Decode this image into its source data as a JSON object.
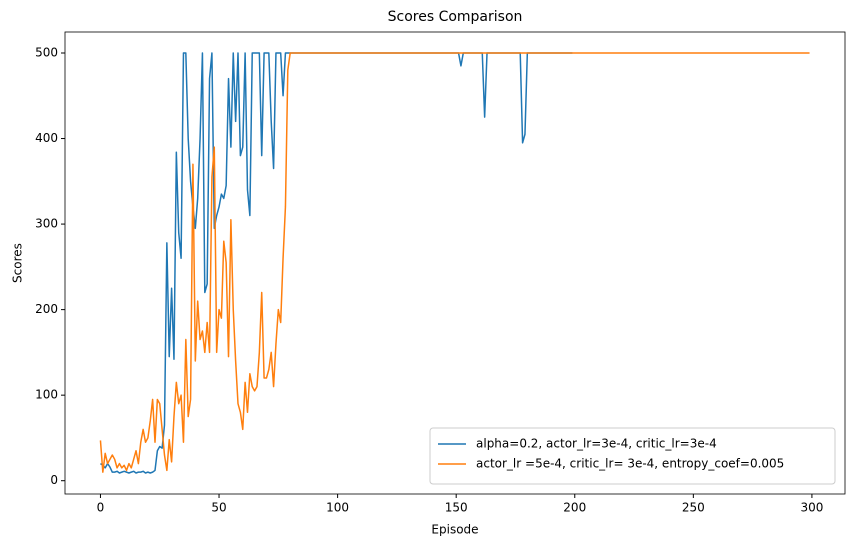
{
  "chart_data": {
    "type": "line",
    "title": "Scores Comparison",
    "xlabel": "Episode",
    "ylabel": "Scores",
    "xlim": [
      -14.95,
      313.95
    ],
    "xticks": [
      0,
      50,
      100,
      150,
      200,
      250,
      300
    ],
    "ylim": [
      -15.55,
      524.55
    ],
    "yticks": [
      0,
      100,
      200,
      300,
      400,
      500
    ],
    "grid": false,
    "legend": "lower right",
    "series": [
      {
        "name": "alpha=0.2, actor_lr=3e-4, critic_lr=3e-4",
        "color": "#1f77b4",
        "values": [
          20,
          18,
          15,
          20,
          16,
          10,
          10,
          11,
          9,
          10,
          11,
          10,
          9,
          10,
          11,
          9,
          10,
          10,
          11,
          9,
          10,
          9,
          10,
          12,
          35,
          40,
          38,
          65,
          278,
          145,
          225,
          142,
          384,
          290,
          260,
          500,
          500,
          400,
          350,
          320,
          295,
          330,
          400,
          500,
          220,
          230,
          470,
          500,
          295,
          310,
          320,
          335,
          330,
          345,
          470,
          390,
          500,
          420,
          500,
          380,
          390,
          500,
          340,
          310,
          500,
          500,
          500,
          500,
          380,
          500,
          500,
          500,
          420,
          365,
          500,
          500,
          500,
          450,
          500,
          500,
          500,
          500,
          500,
          500,
          500,
          500,
          500,
          500,
          500,
          500,
          500,
          500,
          500,
          500,
          500,
          500,
          500,
          500,
          500,
          500,
          500,
          500,
          500,
          500,
          500,
          500,
          500,
          500,
          500,
          500,
          500,
          500,
          500,
          500,
          500,
          500,
          500,
          500,
          500,
          500,
          500,
          500,
          500,
          500,
          500,
          500,
          500,
          500,
          500,
          500,
          500,
          500,
          500,
          500,
          500,
          500,
          500,
          500,
          500,
          500,
          500,
          500,
          500,
          500,
          500,
          500,
          500,
          500,
          500,
          500,
          500,
          500,
          485,
          500,
          500,
          500,
          500,
          500,
          500,
          500,
          500,
          500,
          425,
          500,
          500,
          500,
          500,
          500,
          500,
          500,
          500,
          500,
          500,
          500,
          500,
          500,
          500,
          500,
          395,
          405,
          500,
          500,
          500,
          500,
          500,
          500,
          500,
          500,
          500,
          500,
          500,
          500,
          500,
          500,
          500,
          500,
          500,
          500,
          500,
          500
        ]
      },
      {
        "name": "actor_lr =5e-4, critic_lr= 3e-4, entropy_coef=0.005",
        "color": "#ff7f0e",
        "values": [
          47,
          10,
          32,
          20,
          25,
          30,
          25,
          15,
          20,
          15,
          18,
          12,
          20,
          15,
          25,
          35,
          20,
          45,
          60,
          45,
          50,
          70,
          95,
          45,
          95,
          90,
          60,
          30,
          12,
          48,
          22,
          75,
          115,
          90,
          100,
          45,
          165,
          75,
          95,
          370,
          140,
          210,
          165,
          175,
          150,
          185,
          150,
          355,
          390,
          150,
          200,
          190,
          280,
          255,
          145,
          305,
          200,
          140,
          90,
          80,
          60,
          115,
          80,
          125,
          110,
          105,
          110,
          150,
          220,
          120,
          120,
          130,
          150,
          110,
          160,
          200,
          185,
          260,
          320,
          480,
          500,
          500,
          500,
          500,
          500,
          500,
          500,
          500,
          500,
          500,
          500,
          500,
          500,
          500,
          500,
          500,
          500,
          500,
          500,
          500,
          500,
          500,
          500,
          500,
          500,
          500,
          500,
          500,
          500,
          500,
          500,
          500,
          500,
          500,
          500,
          500,
          500,
          500,
          500,
          500,
          500,
          500,
          500,
          500,
          500,
          500,
          500,
          500,
          500,
          500,
          500,
          500,
          500,
          500,
          500,
          500,
          500,
          500,
          500,
          500,
          500,
          500,
          500,
          500,
          500,
          500,
          500,
          500,
          500,
          500,
          500,
          500,
          500,
          500,
          500,
          500,
          500,
          500,
          500,
          500,
          500,
          500,
          500,
          500,
          500,
          500,
          500,
          500,
          500,
          500,
          500,
          500,
          500,
          500,
          500,
          500,
          500,
          500,
          500,
          500,
          500,
          500,
          500,
          500,
          500,
          500,
          500,
          500,
          500,
          500,
          500,
          500,
          500,
          500,
          500,
          500,
          500,
          500,
          500,
          500,
          500,
          500,
          500,
          500,
          500,
          500,
          500,
          500,
          500,
          500,
          500,
          500,
          500,
          500,
          500,
          500,
          500,
          500,
          500,
          500,
          500,
          500,
          500,
          500,
          500,
          500,
          500,
          500,
          500,
          500,
          500,
          500,
          500,
          500,
          500,
          500,
          500,
          500,
          500,
          500,
          500,
          500,
          500,
          500,
          500,
          500,
          500,
          500,
          500,
          500,
          500,
          500,
          500,
          500,
          500,
          500,
          500,
          500,
          500,
          500,
          500,
          500,
          500,
          500,
          500,
          500,
          500,
          500,
          500,
          500,
          500,
          500,
          500,
          500,
          500,
          500,
          500,
          500,
          500,
          500,
          500,
          500,
          500,
          500,
          500,
          500,
          500,
          500,
          500,
          500,
          500,
          500,
          500,
          500,
          500,
          500,
          500,
          500,
          500,
          500
        ]
      }
    ]
  }
}
